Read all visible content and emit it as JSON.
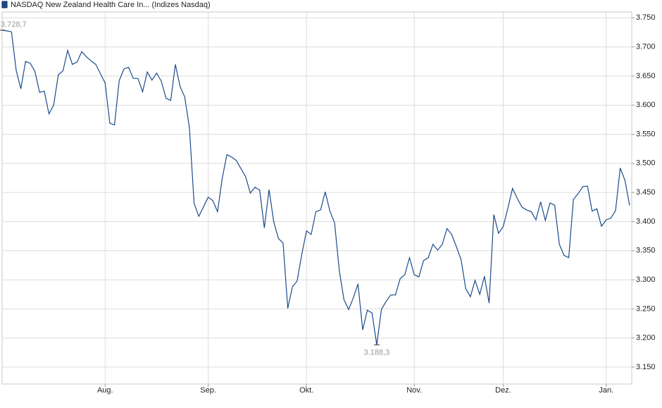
{
  "chart_data": {
    "type": "line",
    "legend_title": "NASDAQ New Zealand Health Care In... (Indizes Nasdaq)",
    "categories": [
      null,
      null,
      null,
      null,
      null,
      null,
      null,
      null,
      null,
      null,
      null,
      null,
      null,
      null,
      null,
      null,
      null,
      null,
      null,
      null,
      null,
      null,
      "Aug.",
      null,
      null,
      null,
      null,
      null,
      null,
      null,
      null,
      null,
      null,
      null,
      null,
      null,
      null,
      null,
      null,
      null,
      null,
      null,
      null,
      null,
      "Sep.",
      null,
      null,
      null,
      null,
      null,
      null,
      null,
      null,
      null,
      null,
      null,
      null,
      null,
      null,
      null,
      null,
      null,
      null,
      null,
      null,
      "Okt.",
      null,
      null,
      null,
      null,
      null,
      null,
      null,
      null,
      null,
      null,
      null,
      null,
      null,
      null,
      null,
      null,
      null,
      null,
      null,
      null,
      null,
      null,
      "Nov.",
      null,
      null,
      null,
      null,
      null,
      null,
      null,
      null,
      null,
      null,
      null,
      null,
      null,
      null,
      null,
      null,
      null,
      null,
      "Dez.",
      null,
      null,
      null,
      null,
      null,
      null,
      null,
      null,
      null,
      null,
      null,
      null,
      null,
      null,
      null,
      null,
      null,
      null,
      null,
      null,
      null,
      "Jan.",
      null,
      null,
      null,
      null,
      null
    ],
    "series": [
      {
        "name": "NASDAQ New Zealand Health Care In...",
        "color": "#1b4b8c",
        "values": [
          3728.7,
          3727.5,
          3726,
          3660,
          3628,
          3675,
          3672,
          3658,
          3622,
          3624,
          3585,
          3600,
          3652,
          3659,
          3694,
          3670,
          3674,
          3692,
          3683,
          3676,
          3670,
          3654,
          3638,
          3569,
          3566,
          3642,
          3662,
          3665,
          3646,
          3646,
          3623,
          3657,
          3643,
          3655,
          3641,
          3612,
          3608,
          3670,
          3632,
          3614,
          3561,
          3431,
          3409,
          3425,
          3442,
          3436,
          3417,
          3474,
          3515,
          3511,
          3505,
          3491,
          3477,
          3449,
          3459,
          3454,
          3389,
          3455,
          3400,
          3371,
          3363,
          3251,
          3288,
          3298,
          3344,
          3384,
          3378,
          3417,
          3420,
          3451,
          3418,
          3398,
          3316,
          3266,
          3249,
          3269,
          3293,
          3214,
          3248,
          3243,
          3188.3,
          3249,
          3263,
          3274,
          3274,
          3302,
          3309,
          3338,
          3309,
          3305,
          3333,
          3338,
          3361,
          3351,
          3361,
          3388,
          3378,
          3357,
          3335,
          3285,
          3271,
          3299,
          3275,
          3306,
          3260,
          3412,
          3380,
          3391,
          3423,
          3457,
          3440,
          3425,
          3420,
          3417,
          3403,
          3434,
          3402,
          3432,
          3428,
          3361,
          3342,
          3338,
          3438,
          3448,
          3460,
          3461,
          3418,
          3422,
          3392,
          3403,
          3406,
          3419,
          3492,
          3471,
          3428
        ]
      }
    ],
    "high": {
      "value": 3728.7,
      "label": "3.728,7"
    },
    "low": {
      "value": 3188.3,
      "label": "3.188,3"
    },
    "ylim": [
      3121,
      3760
    ],
    "yticks": [
      {
        "value": 3150,
        "label": "3.150"
      },
      {
        "value": 3200,
        "label": "3.200"
      },
      {
        "value": 3250,
        "label": "3.250"
      },
      {
        "value": 3300,
        "label": "3.300"
      },
      {
        "value": 3350,
        "label": "3.350"
      },
      {
        "value": 3400,
        "label": "3.400"
      },
      {
        "value": 3450,
        "label": "3.450"
      },
      {
        "value": 3500,
        "label": "3.500"
      },
      {
        "value": 3550,
        "label": "3.550"
      },
      {
        "value": 3600,
        "label": "3.600"
      },
      {
        "value": 3650,
        "label": "3.650"
      },
      {
        "value": 3700,
        "label": "3.700"
      },
      {
        "value": 3750,
        "label": "3.750"
      }
    ],
    "grid": true
  }
}
